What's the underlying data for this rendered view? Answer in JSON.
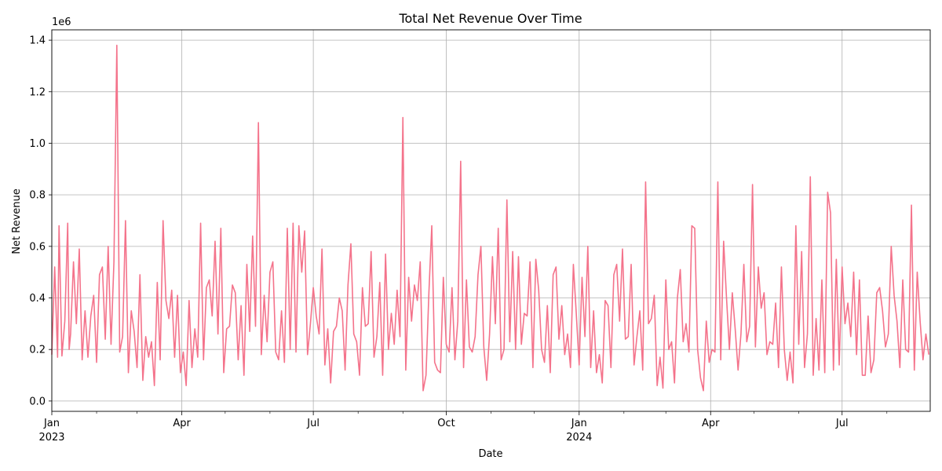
{
  "chart_data": {
    "type": "line",
    "title": "Total Net Revenue Over Time",
    "xlabel": "Date",
    "ylabel": "Net Revenue",
    "y_offset_text": "1e6",
    "grid": true,
    "legend": "none",
    "color": "#f4738b",
    "xlim": [
      "2023-01-01",
      "2024-08-31"
    ],
    "ylim": [
      -40000,
      1440000
    ],
    "x_ticks": [
      {
        "date": "2023-01-01",
        "label": "Jan",
        "sublabel": "2023"
      },
      {
        "date": "2023-04-01",
        "label": "Apr",
        "sublabel": ""
      },
      {
        "date": "2023-07-01",
        "label": "Jul",
        "sublabel": ""
      },
      {
        "date": "2023-10-01",
        "label": "Oct",
        "sublabel": ""
      },
      {
        "date": "2024-01-01",
        "label": "Jan",
        "sublabel": "2024"
      },
      {
        "date": "2024-04-01",
        "label": "Apr",
        "sublabel": ""
      },
      {
        "date": "2024-07-01",
        "label": "Jul",
        "sublabel": ""
      }
    ],
    "x_minor_ticks": [
      "2023-02-01",
      "2023-03-01",
      "2023-05-01",
      "2023-06-01",
      "2023-08-01",
      "2023-09-01",
      "2023-11-01",
      "2023-12-01",
      "2024-02-01",
      "2024-03-01",
      "2024-05-01",
      "2024-06-01",
      "2024-08-01",
      "2024-09-01"
    ],
    "y_ticks": [
      {
        "value": 0,
        "label": "0.0"
      },
      {
        "value": 200000,
        "label": "0.2"
      },
      {
        "value": 400000,
        "label": "0.4"
      },
      {
        "value": 600000,
        "label": "0.6"
      },
      {
        "value": 800000,
        "label": "0.8"
      },
      {
        "value": 1000000,
        "label": "1.0"
      },
      {
        "value": 1200000,
        "label": "1.2"
      },
      {
        "value": 1400000,
        "label": "1.4"
      }
    ],
    "series": [
      {
        "x": [
          "2023-01-01",
          "2023-01-03",
          "2023-01-05",
          "2023-01-06",
          "2023-01-08",
          "2023-01-10",
          "2023-01-12",
          "2023-01-13",
          "2023-01-14",
          "2023-01-16",
          "2023-01-18",
          "2023-01-20",
          "2023-01-22",
          "2023-01-24",
          "2023-01-26",
          "2023-01-28",
          "2023-01-30",
          "2023-02-01",
          "2023-02-03",
          "2023-02-05",
          "2023-02-07",
          "2023-02-09",
          "2023-02-11",
          "2023-02-13",
          "2023-02-15",
          "2023-02-17",
          "2023-02-19",
          "2023-02-21",
          "2023-02-23",
          "2023-02-25",
          "2023-02-27",
          "2023-03-01",
          "2023-03-03",
          "2023-03-05",
          "2023-03-07",
          "2023-03-09",
          "2023-03-11",
          "2023-03-13",
          "2023-03-15",
          "2023-03-17",
          "2023-03-19",
          "2023-03-21",
          "2023-03-23",
          "2023-03-25",
          "2023-03-27",
          "2023-03-29",
          "2023-03-31",
          "2023-04-02",
          "2023-04-04",
          "2023-04-06",
          "2023-04-08",
          "2023-04-10",
          "2023-04-12",
          "2023-04-14",
          "2023-04-16",
          "2023-04-18",
          "2023-04-20",
          "2023-04-22",
          "2023-04-24",
          "2023-04-26",
          "2023-04-28",
          "2023-04-30",
          "2023-05-02",
          "2023-05-04",
          "2023-05-06",
          "2023-05-08",
          "2023-05-10",
          "2023-05-12",
          "2023-05-14",
          "2023-05-16",
          "2023-05-18",
          "2023-05-20",
          "2023-05-22",
          "2023-05-24",
          "2023-05-26",
          "2023-05-28",
          "2023-05-30",
          "2023-06-01",
          "2023-06-03",
          "2023-06-05",
          "2023-06-07",
          "2023-06-09",
          "2023-06-11",
          "2023-06-13",
          "2023-06-15",
          "2023-06-17",
          "2023-06-19",
          "2023-06-21",
          "2023-06-23",
          "2023-06-25",
          "2023-06-27",
          "2023-06-29",
          "2023-07-01",
          "2023-07-03",
          "2023-07-05",
          "2023-07-07",
          "2023-07-09",
          "2023-07-11",
          "2023-07-13",
          "2023-07-15",
          "2023-07-17",
          "2023-07-19",
          "2023-07-21",
          "2023-07-23",
          "2023-07-25",
          "2023-07-27",
          "2023-07-29",
          "2023-07-31",
          "2023-08-02",
          "2023-08-04",
          "2023-08-06",
          "2023-08-08",
          "2023-08-10",
          "2023-08-12",
          "2023-08-14",
          "2023-08-16",
          "2023-08-18",
          "2023-08-20",
          "2023-08-22",
          "2023-08-24",
          "2023-08-26",
          "2023-08-28",
          "2023-08-30",
          "2023-09-01",
          "2023-09-03",
          "2023-09-05",
          "2023-09-07",
          "2023-09-09",
          "2023-09-11",
          "2023-09-13",
          "2023-09-15",
          "2023-09-17",
          "2023-09-19",
          "2023-09-21",
          "2023-09-23",
          "2023-09-25",
          "2023-09-27",
          "2023-09-29",
          "2023-10-01",
          "2023-10-03",
          "2023-10-05",
          "2023-10-07",
          "2023-10-09",
          "2023-10-11",
          "2023-10-13",
          "2023-10-15",
          "2023-10-17",
          "2023-10-19",
          "2023-10-21",
          "2023-10-23",
          "2023-10-25",
          "2023-10-27",
          "2023-10-29",
          "2023-10-31",
          "2023-11-02",
          "2023-11-04",
          "2023-11-06",
          "2023-11-08",
          "2023-11-10",
          "2023-11-12",
          "2023-11-14",
          "2023-11-16",
          "2023-11-18",
          "2023-11-20",
          "2023-11-22",
          "2023-11-24",
          "2023-11-26",
          "2023-11-28",
          "2023-11-30",
          "2023-12-02",
          "2023-12-04",
          "2023-12-06",
          "2023-12-08",
          "2023-12-10",
          "2023-12-12",
          "2023-12-14",
          "2023-12-16",
          "2023-12-18",
          "2023-12-20",
          "2023-12-22",
          "2023-12-24",
          "2023-12-26",
          "2023-12-28",
          "2023-12-30",
          "2024-01-01",
          "2024-01-03",
          "2024-01-05",
          "2024-01-07",
          "2024-01-09",
          "2024-01-11",
          "2024-01-13",
          "2024-01-15",
          "2024-01-17",
          "2024-01-19",
          "2024-01-21",
          "2024-01-23",
          "2024-01-25",
          "2024-01-27",
          "2024-01-29",
          "2024-01-31",
          "2024-02-02",
          "2024-02-04",
          "2024-02-06",
          "2024-02-08",
          "2024-02-10",
          "2024-02-12",
          "2024-02-14",
          "2024-02-16",
          "2024-02-18",
          "2024-02-20",
          "2024-02-22",
          "2024-02-24",
          "2024-02-26",
          "2024-02-28",
          "2024-03-01",
          "2024-03-03",
          "2024-03-05",
          "2024-03-07",
          "2024-03-09",
          "2024-03-11",
          "2024-03-13",
          "2024-03-15",
          "2024-03-17",
          "2024-03-19",
          "2024-03-21",
          "2024-03-23",
          "2024-03-25",
          "2024-03-27",
          "2024-03-29",
          "2024-03-31",
          "2024-04-02",
          "2024-04-04",
          "2024-04-06",
          "2024-04-08",
          "2024-04-10",
          "2024-04-12",
          "2024-04-14",
          "2024-04-16",
          "2024-04-18",
          "2024-04-20",
          "2024-04-22",
          "2024-04-24",
          "2024-04-26",
          "2024-04-28",
          "2024-04-30",
          "2024-05-02",
          "2024-05-04",
          "2024-05-06",
          "2024-05-08",
          "2024-05-10",
          "2024-05-12",
          "2024-05-14",
          "2024-05-16",
          "2024-05-18",
          "2024-05-20",
          "2024-05-22",
          "2024-05-24",
          "2024-05-26",
          "2024-05-28",
          "2024-05-30",
          "2024-06-01",
          "2024-06-03",
          "2024-06-05",
          "2024-06-07",
          "2024-06-09",
          "2024-06-11",
          "2024-06-13",
          "2024-06-15",
          "2024-06-17",
          "2024-06-19",
          "2024-06-21",
          "2024-06-23",
          "2024-06-25",
          "2024-06-27",
          "2024-06-29",
          "2024-07-01",
          "2024-07-03",
          "2024-07-05",
          "2024-07-07",
          "2024-07-09",
          "2024-07-11",
          "2024-07-13",
          "2024-07-15",
          "2024-07-17",
          "2024-07-19",
          "2024-07-21",
          "2024-07-23",
          "2024-07-25",
          "2024-07-27",
          "2024-07-29",
          "2024-07-31",
          "2024-08-02",
          "2024-08-04",
          "2024-08-06",
          "2024-08-08",
          "2024-08-10",
          "2024-08-12",
          "2024-08-14",
          "2024-08-16",
          "2024-08-18",
          "2024-08-20",
          "2024-08-22",
          "2024-08-24",
          "2024-08-26",
          "2024-08-28",
          "2024-08-30"
        ],
        "y": [
          180000,
          520000,
          170000,
          680000,
          175000,
          310000,
          690000,
          200000,
          260000,
          540000,
          300000,
          590000,
          160000,
          350000,
          170000,
          330000,
          410000,
          150000,
          490000,
          520000,
          240000,
          600000,
          220000,
          540000,
          1380000,
          190000,
          250000,
          700000,
          110000,
          350000,
          270000,
          130000,
          490000,
          80000,
          250000,
          170000,
          230000,
          60000,
          460000,
          160000,
          700000,
          390000,
          320000,
          430000,
          170000,
          410000,
          110000,
          190000,
          60000,
          390000,
          130000,
          280000,
          170000,
          690000,
          160000,
          440000,
          470000,
          330000,
          620000,
          260000,
          670000,
          110000,
          280000,
          290000,
          450000,
          420000,
          160000,
          370000,
          100000,
          530000,
          270000,
          640000,
          290000,
          1080000,
          180000,
          410000,
          230000,
          500000,
          540000,
          190000,
          160000,
          350000,
          150000,
          670000,
          200000,
          690000,
          190000,
          680000,
          500000,
          660000,
          180000,
          300000,
          440000,
          330000,
          260000,
          590000,
          140000,
          280000,
          70000,
          270000,
          290000,
          400000,
          350000,
          120000,
          450000,
          610000,
          260000,
          230000,
          100000,
          440000,
          290000,
          300000,
          580000,
          170000,
          250000,
          460000,
          100000,
          570000,
          200000,
          340000,
          220000,
          430000,
          250000,
          1100000,
          120000,
          480000,
          310000,
          450000,
          390000,
          540000,
          40000,
          100000,
          420000,
          680000,
          150000,
          120000,
          110000,
          480000,
          220000,
          190000,
          440000,
          160000,
          310000,
          930000,
          130000,
          470000,
          210000,
          190000,
          250000,
          490000,
          600000,
          210000,
          80000,
          260000,
          560000,
          300000,
          670000,
          160000,
          200000,
          780000,
          230000,
          580000,
          200000,
          560000,
          220000,
          340000,
          330000,
          540000,
          130000,
          550000,
          430000,
          200000,
          150000,
          370000,
          110000,
          490000,
          520000,
          240000,
          370000,
          180000,
          260000,
          130000,
          530000,
          340000,
          140000,
          480000,
          250000,
          600000,
          130000,
          350000,
          110000,
          180000,
          70000,
          390000,
          370000,
          130000,
          490000,
          530000,
          310000,
          590000,
          240000,
          250000,
          530000,
          140000,
          250000,
          350000,
          120000,
          850000,
          300000,
          320000,
          410000,
          60000,
          170000,
          50000,
          470000,
          200000,
          230000,
          70000,
          400000,
          510000,
          230000,
          300000,
          190000,
          680000,
          670000,
          200000,
          90000,
          40000,
          310000,
          150000,
          200000,
          190000,
          850000,
          160000,
          620000,
          400000,
          200000,
          420000,
          280000,
          120000,
          260000,
          530000,
          230000,
          290000,
          840000,
          210000,
          520000,
          360000,
          420000,
          180000,
          230000,
          220000,
          380000,
          130000,
          520000,
          200000,
          80000,
          190000,
          70000,
          680000,
          220000,
          580000,
          130000,
          260000,
          870000,
          100000,
          320000,
          120000,
          470000,
          110000,
          810000,
          730000,
          120000,
          550000,
          140000,
          520000,
          300000,
          380000,
          250000,
          500000,
          180000,
          470000,
          100000,
          100000,
          330000,
          110000,
          160000,
          420000,
          440000,
          350000,
          210000,
          260000,
          600000,
          410000,
          310000,
          130000,
          470000,
          200000,
          190000,
          760000,
          120000,
          500000,
          310000,
          160000,
          260000,
          180000
        ],
        "name": ""
      }
    ]
  }
}
